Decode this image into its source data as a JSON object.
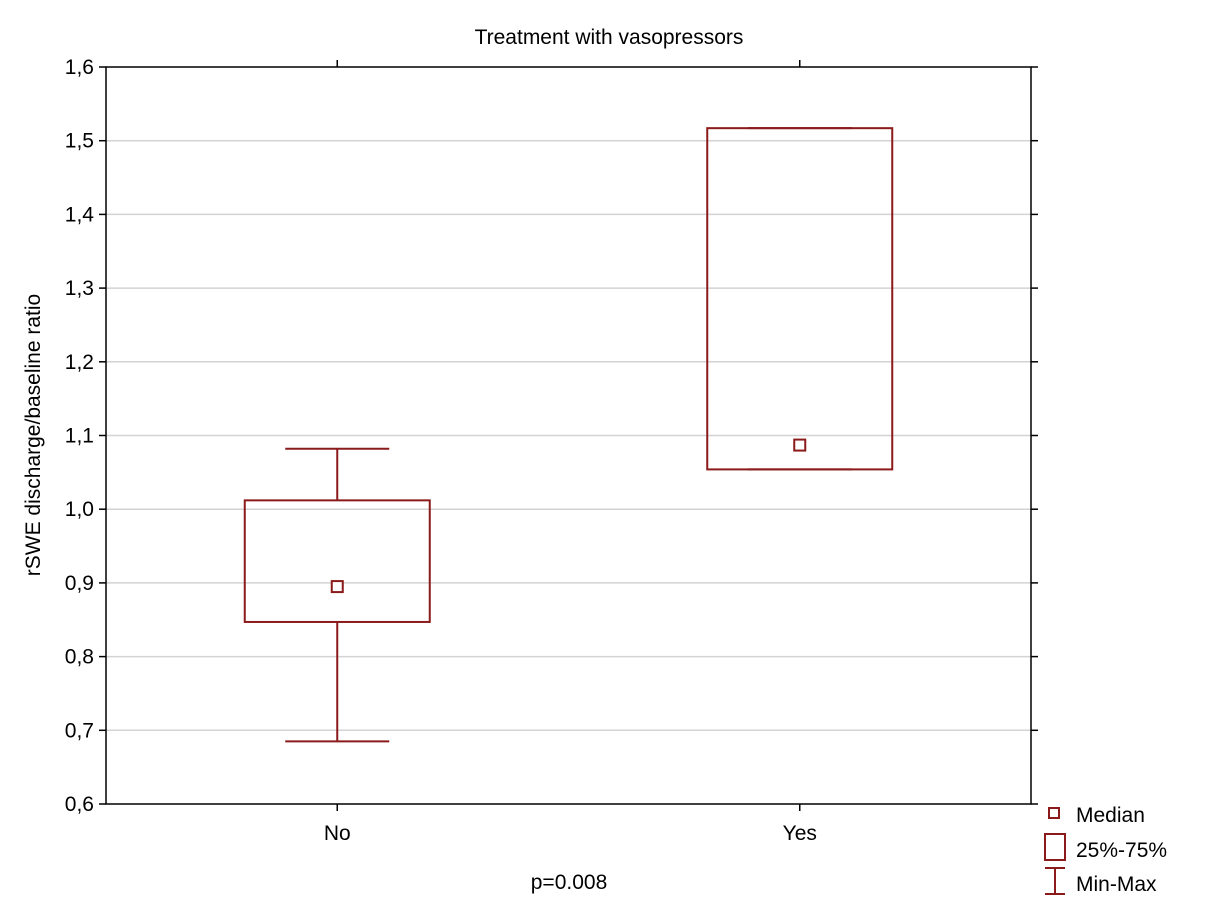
{
  "chart_data": {
    "type": "box",
    "title": "Treatment with vasopressors",
    "ylabel": "rSWE discharge/baseline ratio",
    "xlabel": "p=0.008",
    "categories": [
      "No",
      "Yes"
    ],
    "ylim": [
      0.6,
      1.6
    ],
    "yticks": [
      0.6,
      0.7,
      0.8,
      0.9,
      1.0,
      1.1,
      1.2,
      1.3,
      1.4,
      1.5,
      1.6
    ],
    "ytick_labels": [
      "0,6",
      "0,7",
      "0,8",
      "0,9",
      "1,0",
      "1,1",
      "1,2",
      "1,3",
      "1,4",
      "1,5",
      "1,6"
    ],
    "grid": "horizontal",
    "legend_position": "bottom-right",
    "color": "#8b1a1a",
    "boxes": [
      {
        "category": "No",
        "median": 0.895,
        "q1": 0.847,
        "q3": 1.012,
        "min": 0.685,
        "max": 1.082
      },
      {
        "category": "Yes",
        "median": 1.087,
        "q1": 1.054,
        "q3": 1.517,
        "min": 1.054,
        "max": 1.517
      }
    ],
    "legend": [
      {
        "symbol": "median",
        "label": "Median"
      },
      {
        "symbol": "box",
        "label": "25%-75%"
      },
      {
        "symbol": "whisker",
        "label": "Min-Max"
      }
    ]
  }
}
